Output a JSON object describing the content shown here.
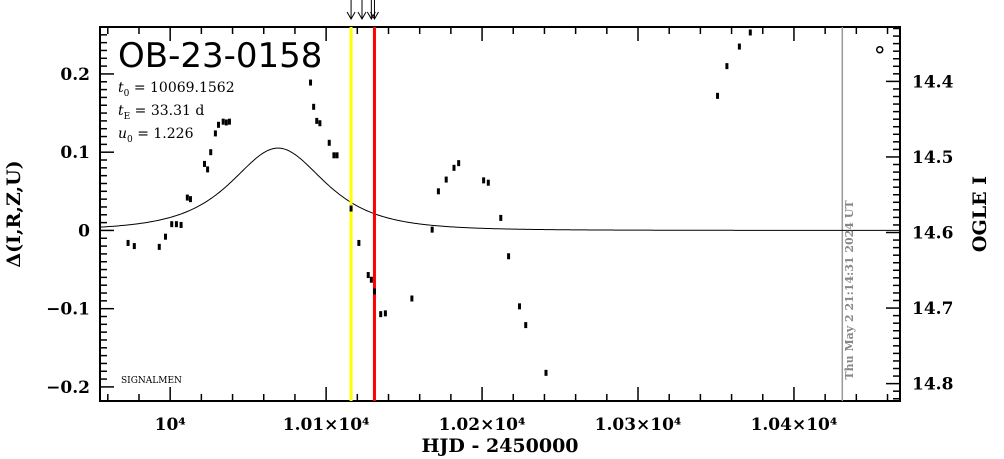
{
  "chart_data": {
    "type": "scatter",
    "title": "OB-23-0158",
    "xlabel": "HJD - 2450000",
    "ylabel_left": "Δ(I,R,Z,U)",
    "ylabel_right": "OGLE I",
    "xlim": [
      9955,
      10468
    ],
    "ylim_left": [
      -0.218,
      0.26
    ],
    "ylim_right": [
      14.823,
      14.328
    ],
    "x_ticks": [
      {
        "value": 10000,
        "label": "10⁴"
      },
      {
        "value": 10100,
        "label": "1.01×10⁴"
      },
      {
        "value": 10200,
        "label": "1.02×10⁴"
      },
      {
        "value": 10300,
        "label": "1.03×10⁴"
      },
      {
        "value": 10400,
        "label": "1.04×10⁴"
      }
    ],
    "y_left_ticks": [
      {
        "value": 0.2,
        "label": "0.2"
      },
      {
        "value": 0.1,
        "label": "0.1"
      },
      {
        "value": 0,
        "label": "0"
      },
      {
        "value": -0.1,
        "label": "−0.1"
      },
      {
        "value": -0.2,
        "label": "−0.2"
      }
    ],
    "y_right_ticks": [
      {
        "value": 14.4,
        "label": "14.4"
      },
      {
        "value": 14.5,
        "label": "14.5"
      },
      {
        "value": 14.6,
        "label": "14.6"
      },
      {
        "value": 14.7,
        "label": "14.7"
      },
      {
        "value": 14.8,
        "label": "14.8"
      }
    ],
    "params": {
      "t0_sym": "t",
      "t0_sub": "0",
      "t0_val": " = 10069.1562",
      "tE_sym": "t",
      "tE_sub": "E",
      "tE_val": " = 33.31  d",
      "u0_sym": "u",
      "u0_sub": "0",
      "u0_val": " = 1.226"
    },
    "model": {
      "t0": 10069.1562,
      "tE": 33.31,
      "u0": 1.226,
      "amp_scale": 0.4826,
      "baseline": 0
    },
    "vlines": [
      {
        "x": 10116,
        "color": "#ffff00"
      },
      {
        "x": 10131,
        "color": "#ff0000"
      }
    ],
    "grey_line_x": 10431,
    "arrows_x": [
      10116,
      10123,
      10129,
      10131
    ],
    "points": [
      {
        "x": 9973,
        "y": -0.016
      },
      {
        "x": 9977,
        "y": -0.02
      },
      {
        "x": 9993,
        "y": -0.021
      },
      {
        "x": 9997,
        "y": -0.008
      },
      {
        "x": 10001,
        "y": 0.008
      },
      {
        "x": 10004,
        "y": 0.008
      },
      {
        "x": 10007,
        "y": 0.007
      },
      {
        "x": 10011,
        "y": 0.042
      },
      {
        "x": 10013,
        "y": 0.04
      },
      {
        "x": 10022,
        "y": 0.085
      },
      {
        "x": 10024,
        "y": 0.078
      },
      {
        "x": 10026,
        "y": 0.1
      },
      {
        "x": 10029,
        "y": 0.124
      },
      {
        "x": 10031,
        "y": 0.135
      },
      {
        "x": 10034,
        "y": 0.139
      },
      {
        "x": 10036,
        "y": 0.138
      },
      {
        "x": 10038,
        "y": 0.139
      },
      {
        "x": 10090,
        "y": 0.189
      },
      {
        "x": 10092,
        "y": 0.158
      },
      {
        "x": 10094,
        "y": 0.14
      },
      {
        "x": 10096,
        "y": 0.137
      },
      {
        "x": 10102,
        "y": 0.112
      },
      {
        "x": 10105,
        "y": 0.096
      },
      {
        "x": 10107,
        "y": 0.096
      },
      {
        "x": 10116,
        "y": 0.028
      },
      {
        "x": 10121,
        "y": -0.016
      },
      {
        "x": 10127,
        "y": -0.057
      },
      {
        "x": 10129,
        "y": -0.063
      },
      {
        "x": 10131,
        "y": -0.078
      },
      {
        "x": 10135,
        "y": -0.107
      },
      {
        "x": 10138,
        "y": -0.106
      },
      {
        "x": 10155,
        "y": -0.087
      },
      {
        "x": 10168,
        "y": 0.001
      },
      {
        "x": 10172,
        "y": 0.05
      },
      {
        "x": 10177,
        "y": 0.065
      },
      {
        "x": 10182,
        "y": 0.08
      },
      {
        "x": 10185,
        "y": 0.086
      },
      {
        "x": 10201,
        "y": 0.064
      },
      {
        "x": 10204,
        "y": 0.061
      },
      {
        "x": 10212,
        "y": 0.016
      },
      {
        "x": 10217,
        "y": -0.033
      },
      {
        "x": 10224,
        "y": -0.097
      },
      {
        "x": 10228,
        "y": -0.121
      },
      {
        "x": 10241,
        "y": -0.182
      },
      {
        "x": 10351,
        "y": 0.172
      },
      {
        "x": 10357,
        "y": 0.21
      },
      {
        "x": 10365,
        "y": 0.235
      },
      {
        "x": 10372,
        "y": 0.253
      },
      {
        "x": 10455,
        "y": 0.231
      }
    ],
    "grid": false,
    "legend": "none"
  },
  "watermark": "SIGNALMEN",
  "timestamp": "Thu May  2 21:14:31 2024 UT"
}
